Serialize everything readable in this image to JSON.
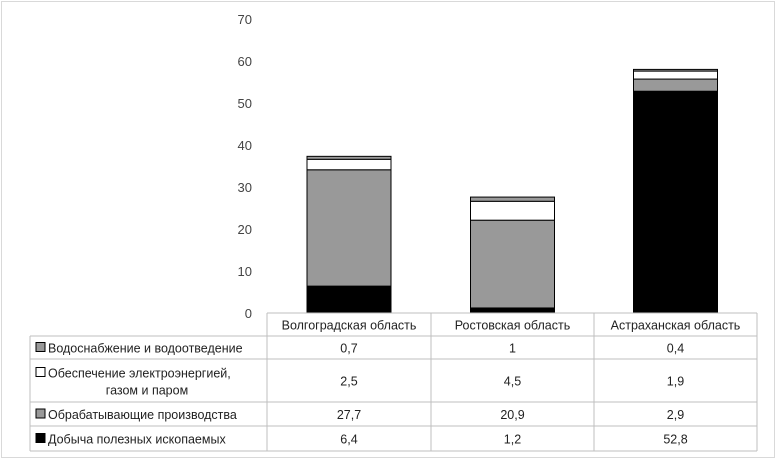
{
  "chart_data": {
    "type": "bar",
    "stacked": true,
    "categories": [
      "Волгоградская область",
      "Ростовская область",
      "Астраханская область"
    ],
    "series": [
      {
        "name": "Добыча полезных ископаемых",
        "values": [
          6.4,
          1.2,
          52.8
        ],
        "labels": [
          "6,4",
          "1,2",
          "52,8"
        ],
        "color": "#000000"
      },
      {
        "name": "Обрабатывающие производства",
        "values": [
          27.7,
          20.9,
          2.9
        ],
        "labels": [
          "27,7",
          "20,9",
          "2,9"
        ],
        "color": "#999999"
      },
      {
        "name_lines": [
          "Обеспечение электроэнергией,",
          "газом и паром"
        ],
        "values": [
          2.5,
          4.5,
          1.9
        ],
        "labels": [
          "2,5",
          "4,5",
          "1,9"
        ],
        "color": "#ffffff"
      },
      {
        "name": "Водоснабжение и водоотведение",
        "values": [
          0.7,
          1,
          0.4
        ],
        "labels": [
          "0,7",
          "1",
          "0,4"
        ],
        "color": "#999999"
      }
    ],
    "ylim": [
      0,
      70
    ],
    "yticks": [
      0,
      10,
      20,
      30,
      40,
      50,
      60,
      70
    ],
    "grid": false,
    "legend": "data table below chart"
  }
}
